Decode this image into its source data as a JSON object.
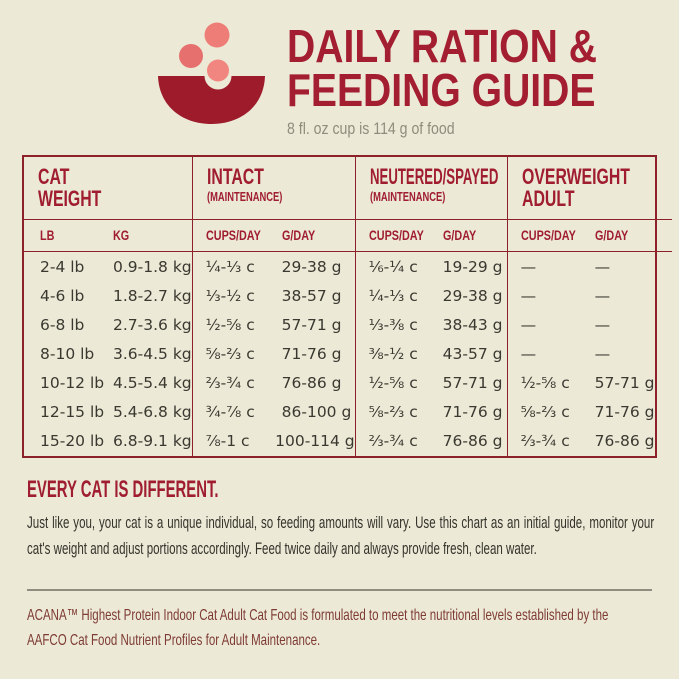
{
  "colors": {
    "background": "#ece9d7",
    "accent_red": "#a41e31",
    "table_border": "#8c2129",
    "salmon_kibble": "#ee7d78",
    "salmon_kibble_dark": "#e6706d",
    "data_text": "#3a3930",
    "muted_gray": "#8f8c7b",
    "footnote_brown": "#7e3b33"
  },
  "header": {
    "title_line1": "DAILY RATION &",
    "title_line2": "FEEDING GUIDE",
    "subtitle": "8 fl. oz cup is 114 g of food",
    "icon": "food-bowl-with-kibble"
  },
  "table": {
    "columns": [
      {
        "key": "cat-weight",
        "title_lines": [
          "CAT",
          "WEIGHT"
        ],
        "subtitle": "",
        "units": [
          "LB",
          "KG"
        ]
      },
      {
        "key": "intact",
        "title_lines": [
          "INTACT"
        ],
        "subtitle": "(MAINTENANCE)",
        "units": [
          "CUPS/DAY",
          "G/DAY"
        ]
      },
      {
        "key": "neutered-spayed",
        "title_lines": [
          "NEUTERED/SPAYED"
        ],
        "subtitle": "(MAINTENANCE)",
        "units": [
          "CUPS/DAY",
          "G/DAY"
        ]
      },
      {
        "key": "overweight-adult",
        "title_lines": [
          "OVERWEIGHT",
          "ADULT"
        ],
        "subtitle": "",
        "units": [
          "CUPS/DAY",
          "G/DAY"
        ]
      }
    ],
    "rows": [
      [
        "2-4 lb",
        "0.9-1.8 kg",
        "¼-⅓ c",
        "29-38 g",
        "⅙-¼ c",
        "19-29 g",
        "—",
        "—"
      ],
      [
        "4-6 lb",
        "1.8-2.7 kg",
        "⅓-½ c",
        "38-57 g",
        "¼-⅓ c",
        "29-38 g",
        "—",
        "—"
      ],
      [
        "6-8 lb",
        "2.7-3.6 kg",
        "½-⅝ c",
        "57-71 g",
        "⅓-⅜ c",
        "38-43 g",
        "—",
        "—"
      ],
      [
        "8-10 lb",
        "3.6-4.5 kg",
        "⅝-⅔ c",
        "71-76 g",
        "⅜-½ c",
        "43-57 g",
        "—",
        "—"
      ],
      [
        "10-12 lb",
        "4.5-5.4 kg",
        "⅔-¾ c",
        "76-86 g",
        "½-⅝ c",
        "57-71 g",
        "½-⅝ c",
        "57-71 g"
      ],
      [
        "12-15 lb",
        "5.4-6.8 kg",
        "¾-⅞ c",
        "86-100 g",
        "⅝-⅔ c",
        "71-76 g",
        "⅝-⅔ c",
        "71-76 g"
      ],
      [
        "15-20 lb",
        "6.8-9.1 kg",
        "⅞-1 c",
        "100-114 g",
        "⅔-¾ c",
        "76-86 g",
        "⅔-¾ c",
        "76-86 g"
      ]
    ]
  },
  "body": {
    "heading": "EVERY CAT IS DIFFERENT.",
    "paragraph": "Just like you, your cat is a unique individual, so feeding amounts will vary. Use this chart as an initial guide, monitor your cat's weight and adjust portions accordingly. Feed twice daily and always provide fresh, clean water.",
    "footnote": "ACANA™ Highest Protein Indoor Cat Adult Cat Food is formulated to meet the nutritional levels established by the AAFCO Cat Food Nutrient Profiles for Adult Maintenance."
  }
}
